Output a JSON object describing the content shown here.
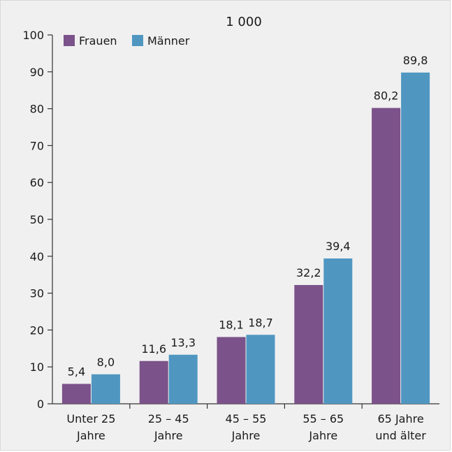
{
  "chart_data": {
    "type": "bar",
    "title": "1 000",
    "categories": [
      [
        "Unter 25",
        "Jahre"
      ],
      [
        "25 – 45",
        "Jahre"
      ],
      [
        "45 – 55",
        "Jahre"
      ],
      [
        "55 – 65",
        "Jahre"
      ],
      [
        "65 Jahre",
        "und älter"
      ]
    ],
    "series": [
      {
        "name": "Frauen",
        "color": "#7b5289",
        "values": [
          5.4,
          11.6,
          18.1,
          32.2,
          80.2
        ],
        "labels": [
          "5,4",
          "11,6",
          "18,1",
          "32,2",
          "80,2"
        ]
      },
      {
        "name": "Männer",
        "color": "#4f97c1",
        "values": [
          8.0,
          13.3,
          18.7,
          39.4,
          89.8
        ],
        "labels": [
          "8,0",
          "13,3",
          "18,7",
          "39,4",
          "89,8"
        ]
      }
    ],
    "ylim": [
      0,
      100
    ],
    "yticks": [
      0,
      10,
      20,
      30,
      40,
      50,
      60,
      70,
      80,
      90,
      100
    ],
    "legend": "top-left",
    "grid": false
  }
}
